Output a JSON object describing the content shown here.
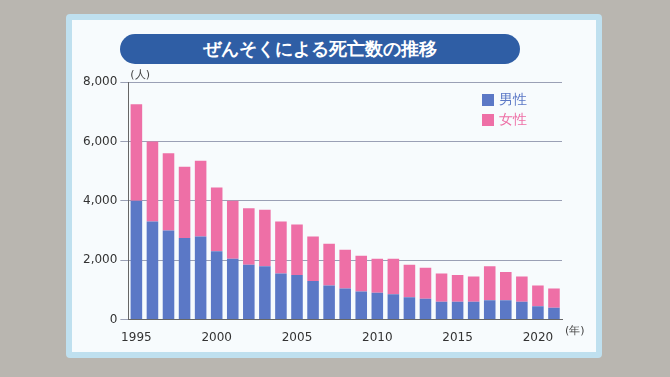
{
  "chart_data": {
    "type": "bar",
    "title": "ぜんそくによる死亡数の推移",
    "y_label": "(人)",
    "x_label": "(年)",
    "stacked": true,
    "grid": true,
    "legend": "top-right",
    "categories": [
      "1995",
      null,
      null,
      null,
      null,
      "2000",
      null,
      null,
      null,
      null,
      "2005",
      null,
      null,
      null,
      null,
      "2010",
      null,
      null,
      null,
      null,
      "2015",
      null,
      null,
      null,
      null,
      "2020",
      null
    ],
    "series": [
      {
        "name": "男性",
        "color": "#5b78c6",
        "values": [
          4000,
          3300,
          3000,
          2750,
          2800,
          2300,
          2050,
          1850,
          1800,
          1550,
          1500,
          1300,
          1150,
          1050,
          950,
          900,
          850,
          750,
          700,
          600,
          600,
          600,
          650,
          650,
          600,
          450,
          400
        ]
      },
      {
        "name": "女性",
        "color": "#ee6fa6",
        "values": [
          3250,
          2700,
          2600,
          2400,
          2550,
          2150,
          1950,
          1900,
          1900,
          1750,
          1700,
          1500,
          1400,
          1300,
          1200,
          1150,
          1200,
          1100,
          1050,
          950,
          900,
          850,
          1150,
          950,
          850,
          700,
          650
        ]
      }
    ],
    "ylim": [
      0,
      8000
    ],
    "yticks": [
      0,
      {
        "value": 2000,
        "label": "2,000"
      },
      {
        "value": 4000,
        "label": "4,000"
      },
      {
        "value": 6000,
        "label": "6,000"
      },
      {
        "value": 8000,
        "label": "8,000"
      }
    ]
  }
}
